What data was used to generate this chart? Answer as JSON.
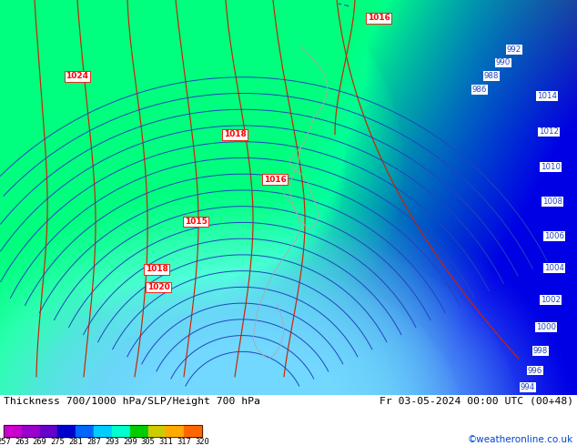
{
  "title_left": "Thickness 700/1000 hPa/SLP/Height 700 hPa",
  "title_right": "Fr 03-05-2024 00:00 UTC (00+48)",
  "credit": "©weatheronline.co.uk",
  "colorbar_values": [
    257,
    263,
    269,
    275,
    281,
    287,
    293,
    299,
    305,
    311,
    317,
    320
  ],
  "colorbar_colors": [
    "#cc00cc",
    "#9900cc",
    "#6600cc",
    "#0000cc",
    "#0066ff",
    "#00ccff",
    "#00ffcc",
    "#00cc00",
    "#cccc00",
    "#ffaa00",
    "#ff6600",
    "#ff0000"
  ],
  "figure_width": 6.34,
  "figure_height": 4.9,
  "dpi": 100,
  "slp_labels": [
    [
      416,
      418,
      "1016"
    ],
    [
      85,
      355,
      "1024"
    ],
    [
      258,
      293,
      "1018"
    ],
    [
      302,
      243,
      "1016"
    ],
    [
      215,
      195,
      "1015"
    ],
    [
      172,
      142,
      "1018"
    ],
    [
      174,
      122,
      "1020"
    ],
    [
      598,
      333,
      "1014"
    ],
    [
      598,
      290,
      "1012"
    ],
    [
      600,
      250,
      "1010"
    ],
    [
      601,
      210,
      "1008"
    ],
    [
      603,
      172,
      "1006"
    ],
    [
      603,
      137,
      "1004"
    ],
    [
      597,
      102,
      "1002"
    ],
    [
      591,
      72,
      "1000"
    ],
    [
      585,
      47,
      "998"
    ],
    [
      578,
      25,
      "996"
    ],
    [
      571,
      8,
      "994"
    ],
    [
      560,
      385,
      "992"
    ],
    [
      548,
      370,
      "990"
    ],
    [
      536,
      355,
      "988"
    ],
    [
      524,
      340,
      "986"
    ]
  ],
  "blue_labels": [
    [
      598,
      333,
      "1014"
    ],
    [
      598,
      290,
      "1012"
    ],
    [
      600,
      250,
      "1010"
    ],
    [
      601,
      210,
      "1008"
    ],
    [
      603,
      172,
      "1006"
    ],
    [
      603,
      137,
      "1004"
    ],
    [
      597,
      102,
      "1002"
    ],
    [
      591,
      72,
      "1000"
    ],
    [
      585,
      47,
      "998"
    ],
    [
      578,
      25,
      "996"
    ],
    [
      571,
      8,
      "994"
    ],
    [
      560,
      385,
      "992"
    ],
    [
      548,
      370,
      "990"
    ],
    [
      536,
      355,
      "988"
    ],
    [
      524,
      340,
      "986"
    ]
  ]
}
